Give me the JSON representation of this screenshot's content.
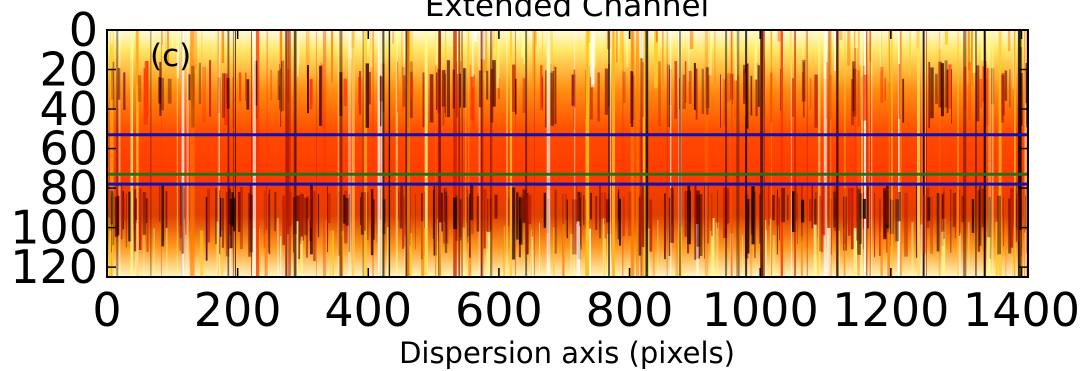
{
  "chart_data": {
    "type": "heatmap",
    "title": "Extended Channel",
    "panel_label": "(c)",
    "xlabel": "Dispersion axis (pixels)",
    "ylabel": "",
    "xlim": [
      0,
      1410
    ],
    "ylim": [
      125,
      0
    ],
    "x_ticks": [
      0,
      200,
      400,
      600,
      800,
      1000,
      1200,
      1400
    ],
    "y_ticks": [
      0,
      20,
      40,
      60,
      80,
      100,
      120
    ],
    "colormap": "hot",
    "colors": {
      "background_low": "#000000",
      "mid": "#ff3c00",
      "high": "#ffff80",
      "blue_line": "#1010b0",
      "green_line": "#2a6e1a",
      "axis": "#000000"
    },
    "horizontal_lines": [
      {
        "color": "blue",
        "y": 53
      },
      {
        "color": "green",
        "y": 73
      },
      {
        "color": "blue",
        "y": 78
      }
    ]
  }
}
